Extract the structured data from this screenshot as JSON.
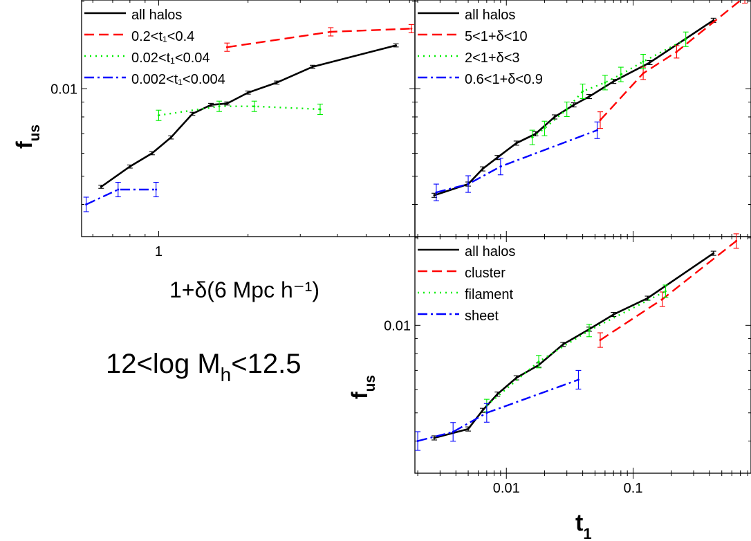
{
  "chart_data": [
    {
      "type": "line",
      "xlabel": "1+δ(6 Mpc h⁻¹)",
      "ylabel": "f",
      "ylabel_sub": "us",
      "xscale": "log",
      "yscale": "log",
      "xlim": [
        0.55,
        7.3
      ],
      "ylim": [
        0.0031,
        0.0202
      ],
      "xticks": [
        {
          "v": 1,
          "label": "1"
        }
      ],
      "yticks": [
        {
          "v": 0.01,
          "label": "0.01"
        }
      ],
      "legend_position": "top-left",
      "series": [
        {
          "name": "all halos",
          "color": "#000000",
          "dash": "solid",
          "x": [
            0.64,
            0.8,
            0.95,
            1.1,
            1.3,
            1.5,
            1.7,
            2.0,
            2.5,
            3.3,
            6.3
          ],
          "y": [
            0.0046,
            0.0054,
            0.006,
            0.0068,
            0.0082,
            0.0088,
            0.0089,
            0.0097,
            0.0105,
            0.0119,
            0.0141
          ],
          "err": [
            0.15,
            0.15,
            0.15,
            0.15,
            0.15,
            0.15,
            0.15,
            0.15,
            0.15,
            0.15,
            0.15
          ]
        },
        {
          "name": "0.2<t₁<0.4",
          "color": "#ff0000",
          "dash": "dash",
          "x": [
            1.7,
            3.8,
            7.1
          ],
          "y": [
            0.0139,
            0.0157,
            0.0161
          ],
          "err": [
            0.4,
            0.4,
            0.4
          ]
        },
        {
          "name": "0.02<t₁<0.04",
          "color": "#00ee00",
          "dash": "dot",
          "x": [
            1.0,
            1.6,
            2.1,
            3.5
          ],
          "y": [
            0.0081,
            0.0087,
            0.0087,
            0.0085
          ],
          "err": [
            0.5,
            0.5,
            0.5,
            0.5
          ]
        },
        {
          "name": "0.002<t₁<0.004",
          "color": "#0000ff",
          "dash": "dashdot",
          "x": [
            0.57,
            0.73,
            0.98
          ],
          "y": [
            0.004,
            0.0045,
            0.0045
          ],
          "err": [
            0.7,
            0.7,
            0.7
          ]
        }
      ]
    },
    {
      "type": "line",
      "xscale": "log",
      "yscale": "log",
      "xlim": [
        0.0019,
        0.85
      ],
      "ylim": [
        0.0031,
        0.0202
      ],
      "legend_position": "top-left",
      "series": [
        {
          "name": "all halos",
          "color": "#000000",
          "dash": "solid",
          "x": [
            0.0027,
            0.005,
            0.0065,
            0.0085,
            0.012,
            0.017,
            0.024,
            0.034,
            0.045,
            0.07,
            0.135,
            0.43
          ],
          "y": [
            0.0043,
            0.0047,
            0.0053,
            0.0058,
            0.0065,
            0.007,
            0.008,
            0.0088,
            0.0094,
            0.0106,
            0.0123,
            0.0172
          ],
          "err": [
            0.2,
            0.2,
            0.2,
            0.2,
            0.2,
            0.2,
            0.2,
            0.2,
            0.2,
            0.2,
            0.2,
            0.2
          ]
        },
        {
          "name": "5<1+δ<10",
          "color": "#ff0000",
          "dash": "dash",
          "x": [
            0.055,
            0.12,
            0.22,
            0.76
          ],
          "y": [
            0.0078,
            0.0113,
            0.0134,
            0.0207
          ],
          "err": [
            0.8,
            0.6,
            0.6,
            0.6
          ]
        },
        {
          "name": "2<1+δ<3",
          "color": "#00ee00",
          "dash": "dot",
          "x": [
            0.016,
            0.02,
            0.03,
            0.04,
            0.06,
            0.08,
            0.12,
            0.26
          ],
          "y": [
            0.0068,
            0.0073,
            0.0085,
            0.0098,
            0.0105,
            0.0112,
            0.0124,
            0.0148
          ],
          "err": [
            0.7,
            0.7,
            0.7,
            0.7,
            0.7,
            0.7,
            0.7,
            0.7
          ]
        },
        {
          "name": "0.6<1+δ<0.9",
          "color": "#0000ff",
          "dash": "dashdot",
          "x": [
            0.0028,
            0.005,
            0.009,
            0.052
          ],
          "y": [
            0.0044,
            0.0047,
            0.0054,
            0.0072
          ],
          "err": [
            0.8,
            0.8,
            0.8,
            0.8
          ]
        }
      ]
    },
    {
      "type": "line",
      "xlabel": "t",
      "xlabel_sub": "1",
      "ylabel": "f",
      "ylabel_sub": "us",
      "xscale": "log",
      "yscale": "log",
      "xlim": [
        0.0019,
        0.85
      ],
      "ylim": [
        0.0031,
        0.0202
      ],
      "xticks": [
        {
          "v": 0.01,
          "label": "0.01"
        },
        {
          "v": 0.1,
          "label": "0.1"
        }
      ],
      "yticks": [
        {
          "v": 0.01,
          "label": "0.01"
        }
      ],
      "legend_position": "top-left",
      "series": [
        {
          "name": "all halos",
          "color": "#000000",
          "dash": "solid",
          "x": [
            0.0027,
            0.005,
            0.0065,
            0.0085,
            0.012,
            0.018,
            0.028,
            0.045,
            0.07,
            0.13,
            0.43
          ],
          "y": [
            0.0041,
            0.0044,
            0.0051,
            0.0058,
            0.0066,
            0.0073,
            0.0086,
            0.0097,
            0.0109,
            0.0124,
            0.0177
          ],
          "err": [
            0.2,
            0.2,
            0.2,
            0.2,
            0.2,
            0.2,
            0.2,
            0.2,
            0.2,
            0.2,
            0.2
          ]
        },
        {
          "name": "cluster",
          "color": "#ff0000",
          "dash": "dash",
          "x": [
            0.055,
            0.17,
            0.65
          ],
          "y": [
            0.0089,
            0.0123,
            0.0195
          ],
          "err": [
            0.7,
            0.7,
            0.7
          ]
        },
        {
          "name": "filament",
          "color": "#00ee00",
          "dash": "dot",
          "x": [
            0.007,
            0.018,
            0.045,
            0.18
          ],
          "y": [
            0.0053,
            0.0075,
            0.0096,
            0.0131
          ],
          "err": [
            0.6,
            0.6,
            0.6,
            0.6
          ]
        },
        {
          "name": "sheet",
          "color": "#0000ff",
          "dash": "dashdot",
          "x": [
            0.002,
            0.0038,
            0.007,
            0.037
          ],
          "y": [
            0.004,
            0.0043,
            0.005,
            0.0065
          ],
          "err": [
            0.9,
            0.9,
            0.9,
            0.9
          ]
        }
      ]
    }
  ],
  "annotation": {
    "main": "12<log M",
    "sub": "h",
    "tail": "<12.5"
  }
}
